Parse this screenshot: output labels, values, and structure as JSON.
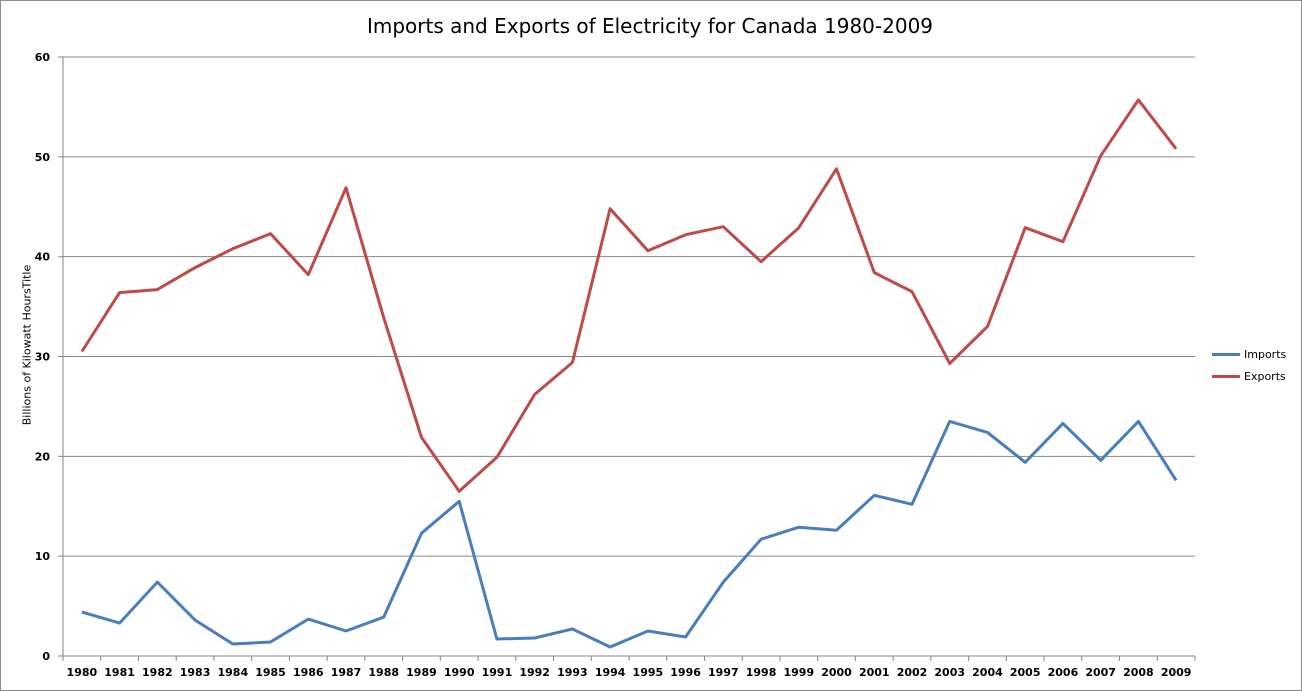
{
  "chart_data": {
    "type": "line",
    "title": "Imports and Exports of Electricity for Canada 1980-2009",
    "xlabel": "",
    "ylabel": "Billions of Kilowatt HoursTitle",
    "ylim": [
      0,
      60
    ],
    "yticks": [
      "0",
      "10",
      "20",
      "30",
      "40",
      "50",
      "60"
    ],
    "grid": true,
    "legend_position": "right",
    "categories": [
      "1980",
      "1981",
      "1982",
      "1983",
      "1984",
      "1985",
      "1986",
      "1987",
      "1988",
      "1989",
      "1990",
      "1991",
      "1992",
      "1993",
      "1994",
      "1995",
      "1996",
      "1997",
      "1998",
      "1999",
      "2000",
      "2001",
      "2002",
      "2003",
      "2004",
      "2005",
      "2006",
      "2007",
      "2008",
      "2009"
    ],
    "series": [
      {
        "name": "Imports",
        "color": "#4a7ebb",
        "values": [
          4.4,
          3.3,
          7.4,
          3.6,
          1.2,
          1.4,
          3.7,
          2.5,
          3.9,
          12.3,
          15.5,
          1.7,
          1.8,
          2.7,
          0.9,
          2.5,
          1.9,
          7.4,
          11.7,
          12.9,
          12.6,
          16.1,
          15.2,
          23.5,
          22.4,
          19.4,
          23.3,
          19.6,
          23.5,
          17.6
        ]
      },
      {
        "name": "Exports",
        "color": "#be4b48",
        "values": [
          30.5,
          36.4,
          36.7,
          38.9,
          40.8,
          42.3,
          38.2,
          46.9,
          33.9,
          21.9,
          16.5,
          19.9,
          26.2,
          29.4,
          44.8,
          40.6,
          42.2,
          43.0,
          39.5,
          42.9,
          48.8,
          38.4,
          36.5,
          29.3,
          33.0,
          42.9,
          41.5,
          50.1,
          55.7,
          50.8
        ]
      }
    ]
  }
}
